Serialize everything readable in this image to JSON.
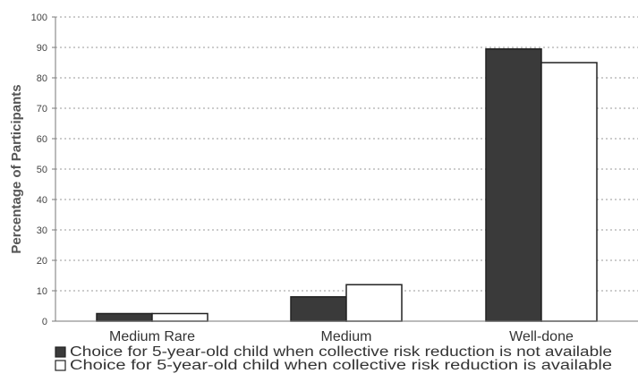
{
  "chart_data": {
    "type": "bar",
    "ylabel": "Percentage of Participants",
    "xlabel": "",
    "title": "",
    "ylim": [
      0,
      100
    ],
    "yticks": [
      0,
      10,
      20,
      30,
      40,
      50,
      60,
      70,
      80,
      90,
      100
    ],
    "grid": true,
    "legend_position": "bottom",
    "categories": [
      "Medium Rare",
      "Medium",
      "Well-done"
    ],
    "series": [
      {
        "name": "Choice for 5-year-old child when collective risk reduction is not available",
        "values": [
          2.5,
          8,
          89.5
        ],
        "color": "#3a3a3a"
      },
      {
        "name": "Choice for 5-year-old child when collective risk reduction is available",
        "values": [
          2.5,
          12,
          85
        ],
        "color": "#ffffff"
      }
    ]
  }
}
